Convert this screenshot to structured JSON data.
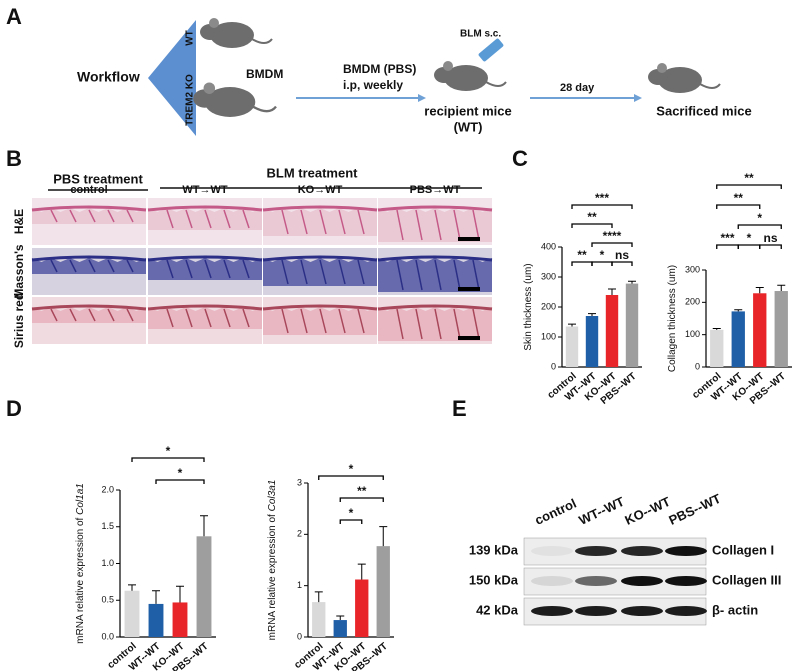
{
  "panel_a": {
    "letter": "A",
    "workflow": "Workflow",
    "wt": "WT",
    "ko": "TREM2 KO",
    "bmdm": "BMDM",
    "bmdm_pbs": "BMDM (PBS)",
    "ip": "i.p, weekly",
    "blm": "BLM s.c.",
    "recipient": "recipient mice",
    "recipient_wt": "(WT)",
    "days": "28 day",
    "sacrificed": "Sacrificed mice"
  },
  "panel_b": {
    "letter": "B",
    "pbs_treatment": "PBS treatment",
    "blm_treatment": "BLM treatment",
    "columns": [
      "control",
      "WT→WT",
      "KO→WT",
      "PBS→WT"
    ],
    "rows": [
      "H&E",
      "Masson's",
      "Sirius red"
    ]
  },
  "panel_c_letter": "C",
  "panel_d_letter": "D",
  "panel_e": {
    "letter": "E",
    "lanes": [
      "control",
      "WT--WT",
      "KO--WT",
      "PBS--WT"
    ],
    "kda": [
      "139 kDa",
      "150 kDa",
      "42 kDa"
    ],
    "proteins": [
      "Collagen I",
      "Collagen III",
      "β- actin"
    ]
  },
  "chart_data": [
    {
      "type": "bar",
      "y_label": "Skin thickness (um)",
      "categories": [
        "control",
        "WT--WT",
        "KO--WT",
        "PBS--WT"
      ],
      "colors": [
        "#d9d9d9",
        "#1f5fa8",
        "#e8262a",
        "#9e9e9e"
      ],
      "values": [
        135,
        170,
        240,
        278
      ],
      "errors": [
        8,
        8,
        20,
        8
      ],
      "ylim": [
        0,
        400
      ],
      "yticks": [
        0,
        100,
        200,
        300,
        400
      ],
      "brackets": [
        {
          "from": 0,
          "to": 1,
          "label": "**"
        },
        {
          "from": 1,
          "to": 2,
          "label": "*"
        },
        {
          "from": 2,
          "to": 3,
          "label": "ns"
        },
        {
          "from": 1,
          "to": 3,
          "label": "****"
        },
        {
          "from": 0,
          "to": 2,
          "label": "**"
        },
        {
          "from": 0,
          "to": 3,
          "label": "***"
        }
      ]
    },
    {
      "type": "bar",
      "y_label": "Collagen thickness (um)",
      "categories": [
        "control",
        "WT--WT",
        "KO--WT",
        "PBS--WT"
      ],
      "colors": [
        "#d9d9d9",
        "#1f5fa8",
        "#e8262a",
        "#9e9e9e"
      ],
      "values": [
        115,
        172,
        228,
        235
      ],
      "errors": [
        4,
        5,
        18,
        18
      ],
      "ylim": [
        0,
        300
      ],
      "yticks": [
        0,
        100,
        200,
        300
      ],
      "brackets": [
        {
          "from": 0,
          "to": 1,
          "label": "***"
        },
        {
          "from": 1,
          "to": 2,
          "label": "*"
        },
        {
          "from": 2,
          "to": 3,
          "label": "ns"
        },
        {
          "from": 1,
          "to": 3,
          "label": "*"
        },
        {
          "from": 0,
          "to": 2,
          "label": "**"
        },
        {
          "from": 0,
          "to": 3,
          "label": "**"
        }
      ]
    },
    {
      "type": "bar",
      "y_label": "mRNA relative expression of ",
      "y_label_gene": "Col1a1",
      "categories": [
        "control",
        "WT--WT",
        "KO--WT",
        "PBS--WT"
      ],
      "colors": [
        "#d9d9d9",
        "#1f5fa8",
        "#e8262a",
        "#9e9e9e"
      ],
      "values": [
        0.63,
        0.45,
        0.47,
        1.37
      ],
      "errors": [
        0.08,
        0.18,
        0.22,
        0.28
      ],
      "ylim": [
        0,
        2
      ],
      "yticks": [
        {
          "value": 0,
          "label": "0.0"
        },
        0.5,
        {
          "value": 1,
          "label": "1.0"
        },
        1.5,
        {
          "value": 2,
          "label": "2.0"
        }
      ],
      "brackets": [
        {
          "from": 1,
          "to": 3,
          "label": "*"
        },
        {
          "from": 0,
          "to": 3,
          "label": "*"
        }
      ]
    },
    {
      "type": "bar",
      "y_label": "mRNA relative expression of ",
      "y_label_gene": "Col3a1",
      "categories": [
        "control",
        "WT--WT",
        "KO--WT",
        "PBS--WT"
      ],
      "colors": [
        "#d9d9d9",
        "#1f5fa8",
        "#e8262a",
        "#9e9e9e"
      ],
      "values": [
        0.68,
        0.33,
        1.12,
        1.77
      ],
      "errors": [
        0.2,
        0.08,
        0.3,
        0.38
      ],
      "ylim": [
        0,
        3
      ],
      "yticks": [
        0,
        1,
        2,
        3
      ],
      "brackets": [
        {
          "from": 1,
          "to": 2,
          "label": "*"
        },
        {
          "from": 1,
          "to": 3,
          "label": "**"
        },
        {
          "from": 0,
          "to": 3,
          "label": "*"
        }
      ]
    }
  ]
}
